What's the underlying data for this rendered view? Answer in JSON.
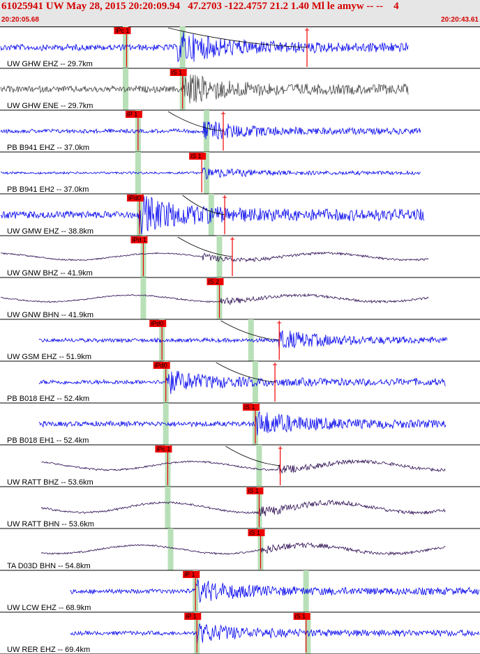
{
  "header": {
    "title": "61025941 UW May 28, 2015 20:20:09.94   47.2703 -122.4757 21.2 1.40 Ml le amyw -- --    4",
    "start_time": "20:20:05.68",
    "end_time": "20:20:43.61"
  },
  "colors": {
    "blue": "#0000ee",
    "purple": "#2a0a50",
    "gray": "#444444",
    "pick": "#ee0000",
    "window": "#b8e0b8"
  },
  "traces": [
    {
      "label": "UW GHW EHZ -- 29.7km",
      "color": "blue",
      "amp": 0.55,
      "lp": 0,
      "start": 0.0,
      "end": 0.852,
      "picks": [
        {
          "text": "iPc 1",
          "t": 0.263
        },
        {
          "text": "",
          "t": 0.64
        }
      ],
      "windows": [
        0.261,
        0.38
      ],
      "onset": 0.37,
      "curve": [
        0.35,
        0.64
      ]
    },
    {
      "label": "UW GHW ENE -- 29.7km",
      "color": "gray",
      "amp": 0.55,
      "lp": 0,
      "start": 0.0,
      "end": 0.852,
      "picks": [
        {
          "text": "iS 1",
          "t": 0.38
        }
      ],
      "windows": [
        0.261,
        0.38
      ],
      "onset": 0.38,
      "curve": null
    },
    {
      "label": "PB B941 EHZ -- 37.0km",
      "color": "blue",
      "amp": 0.35,
      "lp": 0,
      "start": 0.0,
      "end": 0.878,
      "picks": [
        {
          "text": "iP 1",
          "t": 0.287
        },
        {
          "text": "",
          "t": 0.465
        }
      ],
      "windows": [
        0.287,
        0.43
      ],
      "onset": 0.42,
      "curve": [
        0.35,
        0.465
      ]
    },
    {
      "label": "PB B941 EH2 -- 37.0km",
      "color": "blue",
      "amp": 0.2,
      "lp": 0,
      "start": 0.0,
      "end": 0.878,
      "picks": [
        {
          "text": "iS 1",
          "t": 0.42
        }
      ],
      "windows": [
        0.287,
        0.43
      ],
      "onset": 0.42,
      "curve": null
    },
    {
      "label": "UW GMW EHZ -- 38.8km",
      "color": "blue",
      "amp": 0.65,
      "lp": 0,
      "start": 0.0,
      "end": 0.886,
      "picks": [
        {
          "text": "iPd0",
          "t": 0.29
        },
        {
          "text": "",
          "t": 0.468
        }
      ],
      "windows": [
        0.29,
        0.44
      ],
      "onset": 0.29,
      "curve": [
        0.38,
        0.468
      ]
    },
    {
      "label": "UW GNW BHZ -- 41.9km",
      "color": "purple",
      "amp": 0.2,
      "lp": 1,
      "start": 0.0,
      "end": 0.895,
      "picks": [
        {
          "text": "iPd 1",
          "t": 0.298
        },
        {
          "text": "",
          "t": 0.484
        }
      ],
      "windows": [
        0.298,
        0.457
      ],
      "onset": 0.42,
      "curve": [
        0.37,
        0.484
      ]
    },
    {
      "label": "UW GNW BHN -- 41.9km",
      "color": "purple",
      "amp": 0.2,
      "lp": 1,
      "start": 0.0,
      "end": 0.895,
      "picks": [
        {
          "text": "iS 2",
          "t": 0.457
        }
      ],
      "windows": [
        0.298,
        0.457
      ],
      "onset": 0.457,
      "curve": null
    },
    {
      "label": "UW GSM EHZ -- 51.9km",
      "color": "blue",
      "amp": 0.35,
      "lp": 0,
      "start": 0.08,
      "end": 0.934,
      "picks": [
        {
          "text": "iPd0",
          "t": 0.337
        },
        {
          "text": "",
          "t": 0.582
        }
      ],
      "windows": [
        0.337,
        0.523
      ],
      "onset": 0.58,
      "curve": [
        0.46,
        0.582
      ]
    },
    {
      "label": "PB B018 EHZ -- 52.4km",
      "color": "blue",
      "amp": 0.4,
      "lp": 0,
      "start": 0.08,
      "end": 0.93,
      "picks": [
        {
          "text": "iPd0",
          "t": 0.345
        },
        {
          "text": "",
          "t": 0.573
        }
      ],
      "windows": [
        0.345,
        0.532
      ],
      "onset": 0.345,
      "curve": [
        0.45,
        0.573
      ]
    },
    {
      "label": "PB B018 EH1 -- 52.4km",
      "color": "blue",
      "amp": 0.45,
      "lp": 0,
      "start": 0.08,
      "end": 0.93,
      "picks": [
        {
          "text": "iS 1",
          "t": 0.532
        }
      ],
      "windows": [
        0.345,
        0.532
      ],
      "onset": 0.532,
      "curve": null
    },
    {
      "label": "UW RATT BHZ -- 53.6km",
      "color": "purple",
      "amp": 0.25,
      "lp": 1,
      "start": 0.085,
      "end": 0.93,
      "picks": [
        {
          "text": "iPc 1",
          "t": 0.349
        },
        {
          "text": "",
          "t": 0.584
        }
      ],
      "windows": [
        0.349,
        0.54
      ],
      "onset": 0.58,
      "curve": [
        0.47,
        0.584
      ]
    },
    {
      "label": "UW RATT BHN -- 53.6km",
      "color": "purple",
      "amp": 0.3,
      "lp": 1,
      "start": 0.085,
      "end": 0.93,
      "picks": [
        {
          "text": "iS 1",
          "t": 0.54
        }
      ],
      "windows": [
        0.349,
        0.54
      ],
      "onset": 0.54,
      "curve": null
    },
    {
      "label": "TA D03D BHN -- 54.8km",
      "color": "purple",
      "amp": 0.25,
      "lp": 1,
      "start": 0.085,
      "end": 0.93,
      "picks": [
        {
          "text": "iS 1",
          "t": 0.543
        }
      ],
      "windows": [
        0.355,
        0.543
      ],
      "onset": 0.543,
      "curve": null
    },
    {
      "label": "UW LCW EHZ -- 68.9km",
      "color": "blue",
      "amp": 0.4,
      "lp": 0,
      "start": 0.145,
      "end": 1.0,
      "picks": [
        {
          "text": "iP 1",
          "t": 0.407
        }
      ],
      "windows": [
        0.407,
        0.638
      ],
      "onset": 0.407,
      "curve": null
    },
    {
      "label": "UW RER EHZ -- 69.4km",
      "color": "blue",
      "amp": 0.35,
      "lp": 0,
      "start": 0.145,
      "end": 1.0,
      "picks": [
        {
          "text": "iP 1",
          "t": 0.41
        },
        {
          "text": "iS 1",
          "t": 0.638
        }
      ],
      "windows": [
        0.41,
        0.642
      ],
      "onset": 0.41,
      "curve": null
    }
  ]
}
